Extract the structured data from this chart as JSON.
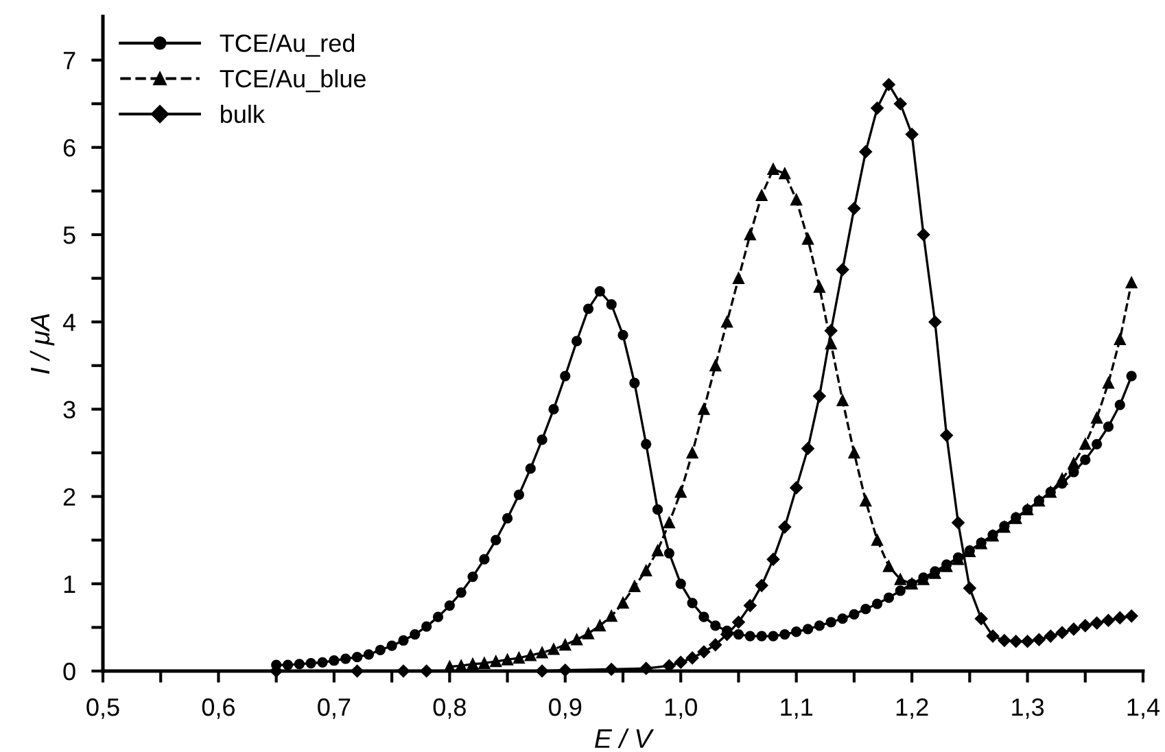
{
  "chart_data": {
    "type": "line",
    "xlabel": "E / V",
    "ylabel": "I / μA",
    "xlim": [
      0.5,
      1.4
    ],
    "ylim": [
      0,
      7.5
    ],
    "xticks": [
      {
        "value": 0.5,
        "label": "0,5"
      },
      {
        "value": 0.55,
        "label": null
      },
      {
        "value": 0.6,
        "label": "0,6"
      },
      {
        "value": 0.65,
        "label": null
      },
      {
        "value": 0.7,
        "label": "0,7"
      },
      {
        "value": 0.75,
        "label": null
      },
      {
        "value": 0.8,
        "label": "0,8"
      },
      {
        "value": 0.85,
        "label": null
      },
      {
        "value": 0.9,
        "label": "0,9"
      },
      {
        "value": 0.95,
        "label": null
      },
      {
        "value": 1.0,
        "label": "1,0"
      },
      {
        "value": 1.05,
        "label": null
      },
      {
        "value": 1.1,
        "label": "1,1"
      },
      {
        "value": 1.15,
        "label": null
      },
      {
        "value": 1.2,
        "label": "1,2"
      },
      {
        "value": 1.25,
        "label": null
      },
      {
        "value": 1.3,
        "label": "1,3"
      },
      {
        "value": 1.35,
        "label": null
      },
      {
        "value": 1.4,
        "label": "1,4"
      }
    ],
    "yticks": [
      0,
      {
        "value": 0.5,
        "label": null
      },
      1,
      {
        "value": 1.5,
        "label": null
      },
      2,
      {
        "value": 2.5,
        "label": null
      },
      3,
      {
        "value": 3.5,
        "label": null
      },
      4,
      {
        "value": 4.5,
        "label": null
      },
      5,
      {
        "value": 5.5,
        "label": null
      },
      6,
      {
        "value": 6.5,
        "label": null
      },
      7
    ],
    "grid": false,
    "legend": "top left",
    "series": [
      {
        "name": "TCE/Au_red",
        "color": "#000000",
        "marker": "circle",
        "line_style": "solid",
        "x": [
          0.65,
          0.66,
          0.67,
          0.68,
          0.69,
          0.7,
          0.71,
          0.72,
          0.73,
          0.74,
          0.75,
          0.76,
          0.77,
          0.78,
          0.79,
          0.8,
          0.81,
          0.82,
          0.83,
          0.84,
          0.85,
          0.86,
          0.87,
          0.88,
          0.89,
          0.9,
          0.91,
          0.92,
          0.93,
          0.94,
          0.95,
          0.96,
          0.97,
          0.98,
          0.99,
          1.0,
          1.01,
          1.02,
          1.03,
          1.04,
          1.05,
          1.06,
          1.07,
          1.08,
          1.09,
          1.1,
          1.11,
          1.12,
          1.13,
          1.14,
          1.15,
          1.16,
          1.17,
          1.18,
          1.19,
          1.2,
          1.21,
          1.22,
          1.23,
          1.24,
          1.25,
          1.26,
          1.27,
          1.28,
          1.29,
          1.3,
          1.31,
          1.32,
          1.33,
          1.34,
          1.35,
          1.36,
          1.37,
          1.38,
          1.39
        ],
        "values": [
          0.07,
          0.07,
          0.08,
          0.09,
          0.1,
          0.12,
          0.14,
          0.16,
          0.19,
          0.24,
          0.29,
          0.35,
          0.42,
          0.51,
          0.62,
          0.75,
          0.9,
          1.08,
          1.28,
          1.5,
          1.75,
          2.02,
          2.32,
          2.65,
          3.0,
          3.38,
          3.78,
          4.15,
          4.35,
          4.2,
          3.85,
          3.3,
          2.6,
          1.85,
          1.35,
          1.0,
          0.78,
          0.62,
          0.52,
          0.46,
          0.42,
          0.4,
          0.4,
          0.4,
          0.42,
          0.45,
          0.48,
          0.52,
          0.56,
          0.6,
          0.65,
          0.71,
          0.77,
          0.84,
          0.92,
          1.0,
          1.07,
          1.14,
          1.22,
          1.3,
          1.38,
          1.47,
          1.56,
          1.66,
          1.76,
          1.85,
          1.95,
          2.05,
          2.15,
          2.28,
          2.42,
          2.6,
          2.8,
          3.05,
          3.38
        ]
      },
      {
        "name": "TCE/Au_blue",
        "color": "#000000",
        "marker": "triangle",
        "line_style": "dashed",
        "x": [
          0.8,
          0.81,
          0.82,
          0.83,
          0.84,
          0.85,
          0.86,
          0.87,
          0.88,
          0.89,
          0.9,
          0.91,
          0.92,
          0.93,
          0.94,
          0.95,
          0.96,
          0.97,
          0.98,
          0.99,
          1.0,
          1.01,
          1.02,
          1.03,
          1.04,
          1.05,
          1.06,
          1.07,
          1.08,
          1.09,
          1.1,
          1.11,
          1.12,
          1.13,
          1.14,
          1.15,
          1.16,
          1.17,
          1.18,
          1.19,
          1.2,
          1.21,
          1.22,
          1.23,
          1.24,
          1.25,
          1.26,
          1.27,
          1.28,
          1.29,
          1.3,
          1.31,
          1.32,
          1.33,
          1.34,
          1.35,
          1.36,
          1.37,
          1.38,
          1.39
        ],
        "values": [
          0.05,
          0.06,
          0.08,
          0.09,
          0.11,
          0.13,
          0.15,
          0.18,
          0.21,
          0.25,
          0.3,
          0.36,
          0.43,
          0.52,
          0.63,
          0.78,
          0.97,
          1.15,
          1.38,
          1.7,
          2.05,
          2.5,
          3.0,
          3.5,
          4.0,
          4.5,
          5.0,
          5.45,
          5.75,
          5.7,
          5.4,
          4.95,
          4.4,
          3.75,
          3.1,
          2.5,
          1.95,
          1.5,
          1.2,
          1.05,
          1.0,
          1.05,
          1.12,
          1.2,
          1.28,
          1.37,
          1.46,
          1.55,
          1.65,
          1.75,
          1.85,
          1.95,
          2.05,
          2.2,
          2.38,
          2.6,
          2.9,
          3.3,
          3.8,
          4.45
        ]
      },
      {
        "name": "bulk",
        "color": "#000000",
        "marker": "diamond",
        "line_style": "solid",
        "x": [
          0.65,
          0.72,
          0.76,
          0.78,
          0.88,
          0.9,
          0.94,
          0.97,
          0.99,
          1.0,
          1.01,
          1.02,
          1.03,
          1.04,
          1.05,
          1.06,
          1.07,
          1.08,
          1.09,
          1.1,
          1.11,
          1.12,
          1.13,
          1.14,
          1.15,
          1.16,
          1.17,
          1.18,
          1.19,
          1.2,
          1.21,
          1.22,
          1.23,
          1.24,
          1.25,
          1.26,
          1.27,
          1.28,
          1.29,
          1.3,
          1.31,
          1.32,
          1.33,
          1.34,
          1.35,
          1.36,
          1.37,
          1.38,
          1.39
        ],
        "values": [
          0,
          0,
          0,
          0,
          0,
          0.01,
          0.02,
          0.03,
          0.06,
          0.1,
          0.15,
          0.22,
          0.3,
          0.42,
          0.56,
          0.75,
          0.98,
          1.28,
          1.65,
          2.1,
          2.55,
          3.15,
          3.9,
          4.6,
          5.3,
          5.95,
          6.45,
          6.72,
          6.5,
          6.15,
          5.0,
          4.0,
          2.7,
          1.7,
          0.95,
          0.6,
          0.4,
          0.35,
          0.34,
          0.34,
          0.36,
          0.4,
          0.44,
          0.48,
          0.52,
          0.55,
          0.58,
          0.61,
          0.63
        ]
      }
    ]
  }
}
